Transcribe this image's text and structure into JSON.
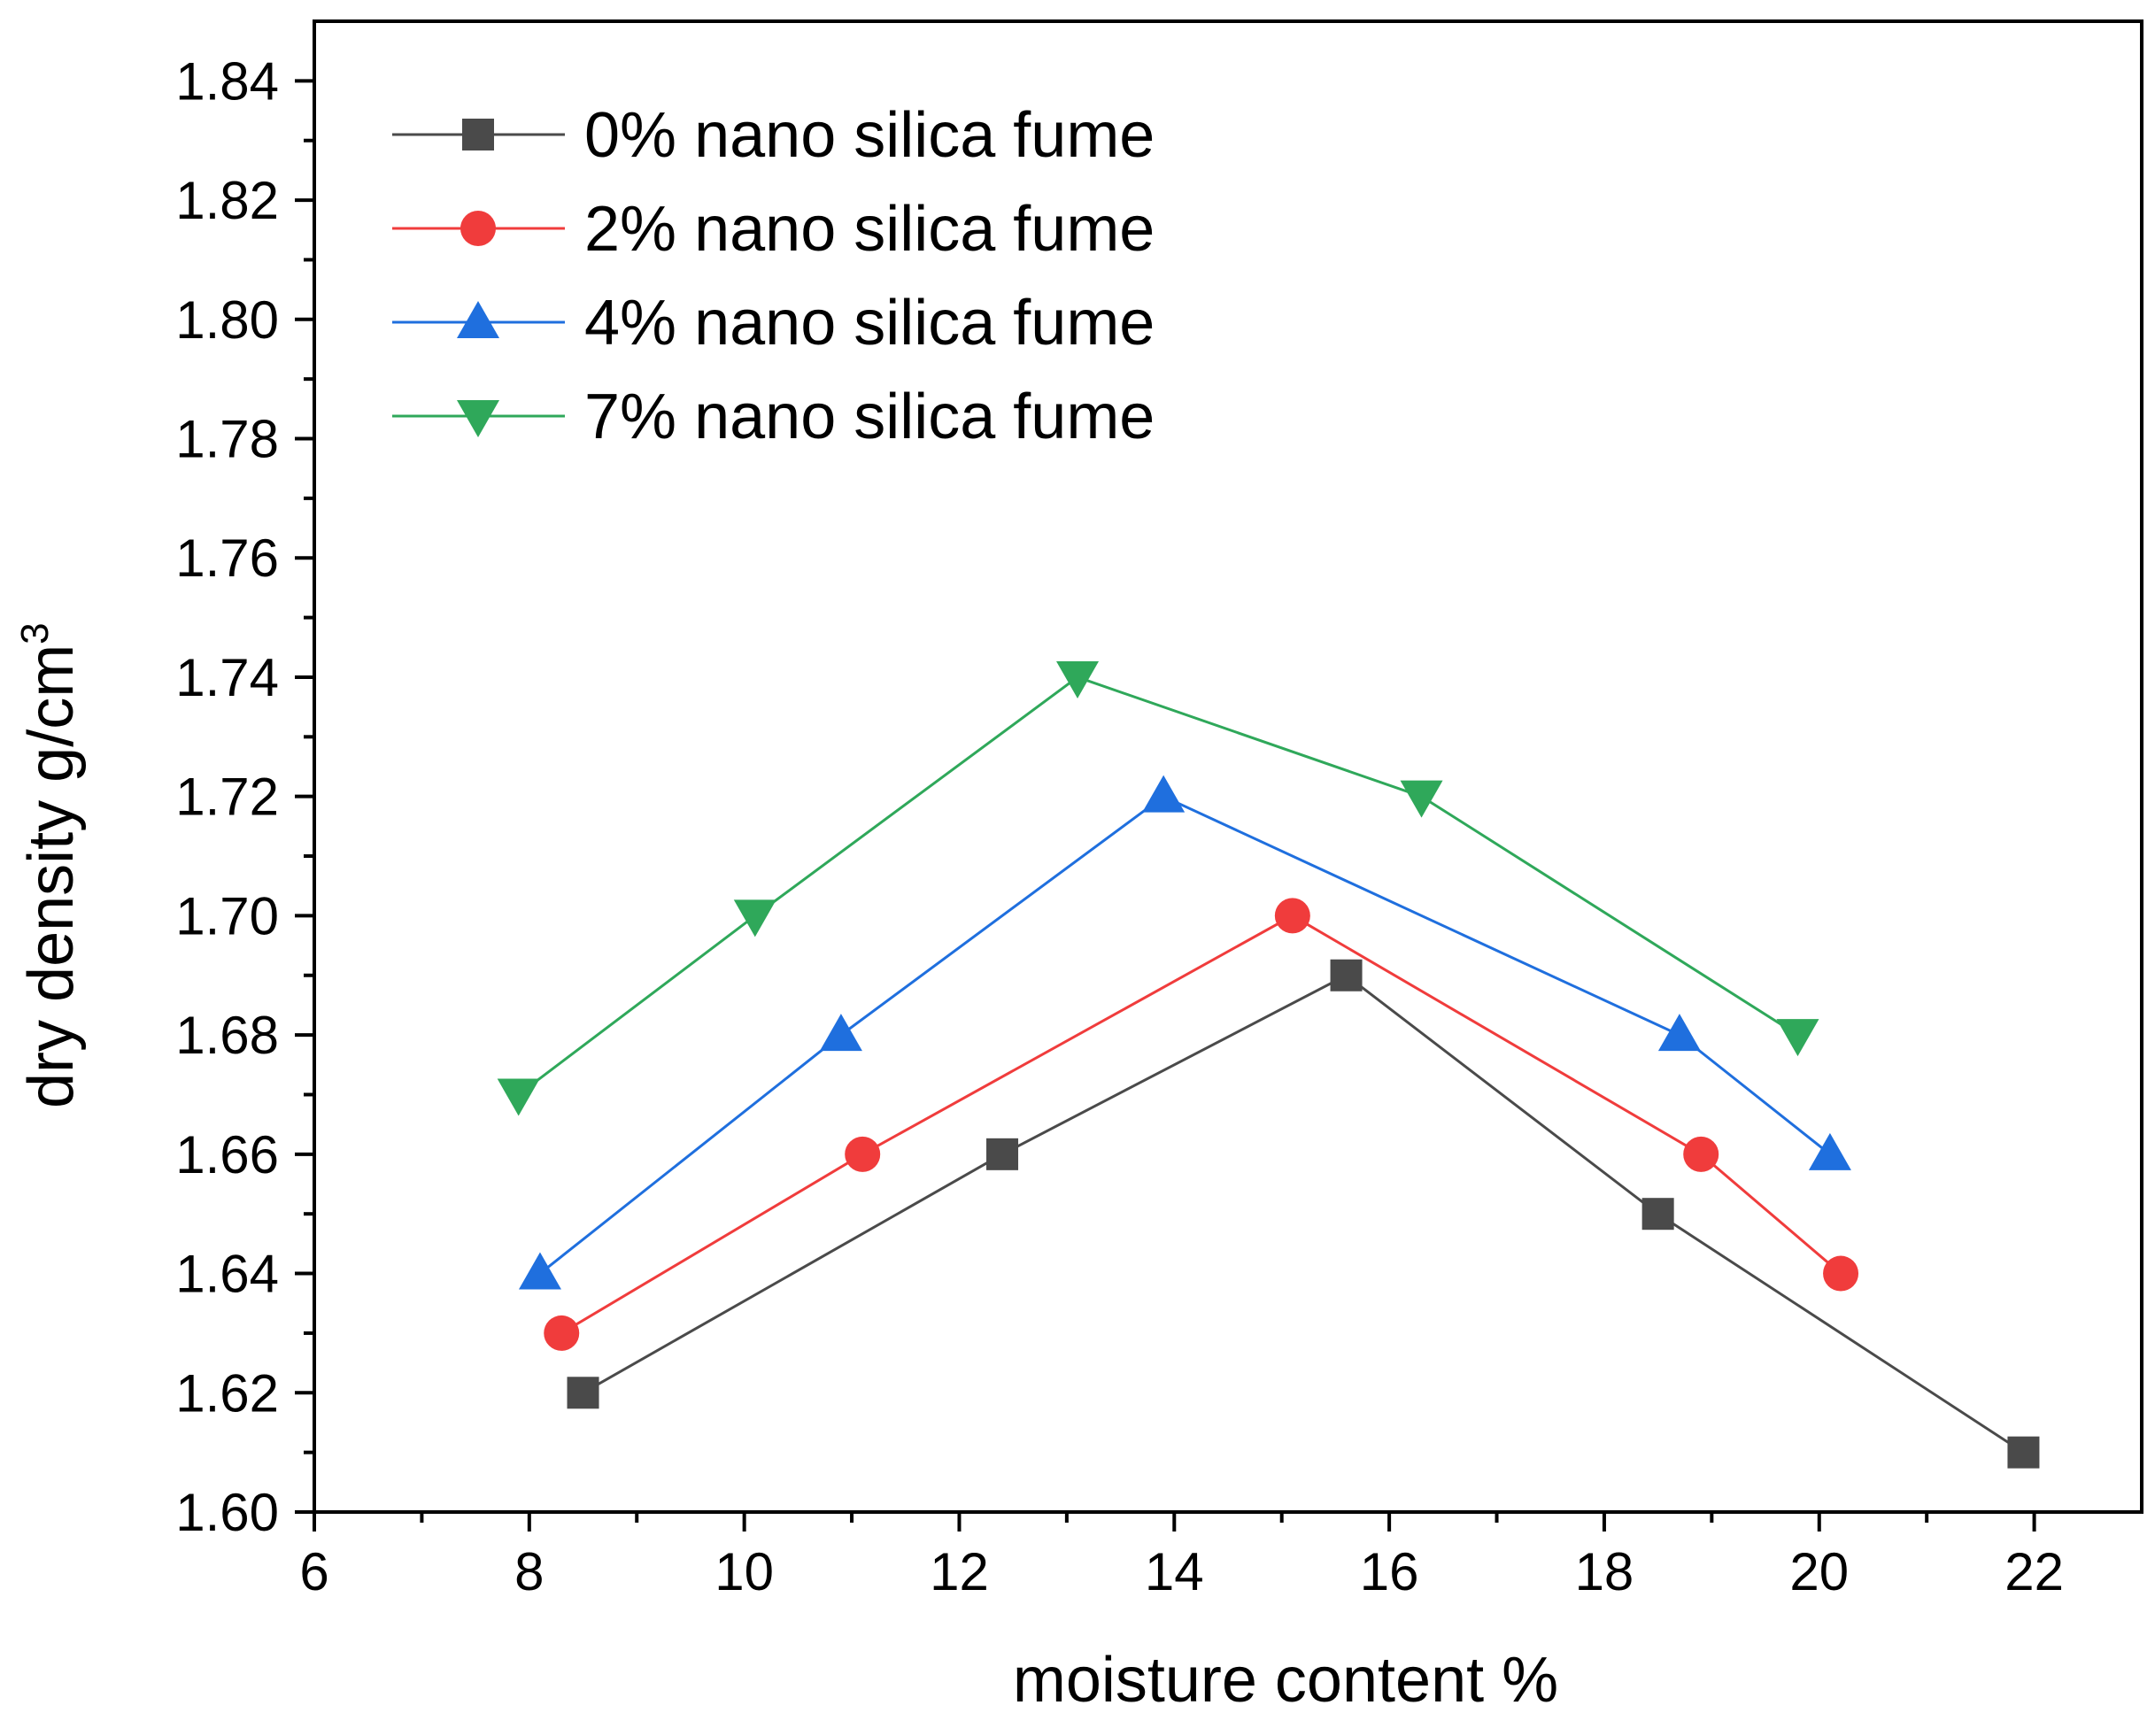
{
  "chart_data": {
    "type": "line",
    "xlabel": "moisture content %",
    "ylabel": "dry density g/cm",
    "ylabel_superscript": "3",
    "xlim": [
      6,
      23
    ],
    "ylim": [
      1.6,
      1.85
    ],
    "x_ticks": [
      "6",
      "8",
      "10",
      "12",
      "14",
      "16",
      "18",
      "20",
      "22"
    ],
    "y_ticks": [
      "1.60",
      "1.62",
      "1.64",
      "1.66",
      "1.68",
      "1.70",
      "1.72",
      "1.74",
      "1.76",
      "1.78",
      "1.80",
      "1.82",
      "1.84"
    ],
    "grid": false,
    "legend_position": "top-left",
    "series": [
      {
        "name": "0% nano silica fume",
        "color": "#4a4a4a",
        "marker": "square",
        "x": [
          8.5,
          12.4,
          15.6,
          18.5,
          21.9
        ],
        "y": [
          1.62,
          1.66,
          1.69,
          1.65,
          1.61
        ]
      },
      {
        "name": "2% nano silica fume",
        "color": "#f03c3c",
        "marker": "circle",
        "x": [
          8.3,
          11.1,
          15.1,
          18.9,
          20.2
        ],
        "y": [
          1.63,
          1.66,
          1.7,
          1.66,
          1.64
        ]
      },
      {
        "name": "4% nano silica fume",
        "color": "#1f6fde",
        "marker": "triangle-up",
        "x": [
          8.1,
          10.9,
          13.9,
          18.7,
          20.1
        ],
        "y": [
          1.64,
          1.68,
          1.72,
          1.68,
          1.66
        ]
      },
      {
        "name": "7% nano silica fume",
        "color": "#2fa85a",
        "marker": "triangle-down",
        "x": [
          7.9,
          10.1,
          13.1,
          16.3,
          19.8
        ],
        "y": [
          1.67,
          1.7,
          1.74,
          1.72,
          1.68
        ]
      }
    ]
  }
}
